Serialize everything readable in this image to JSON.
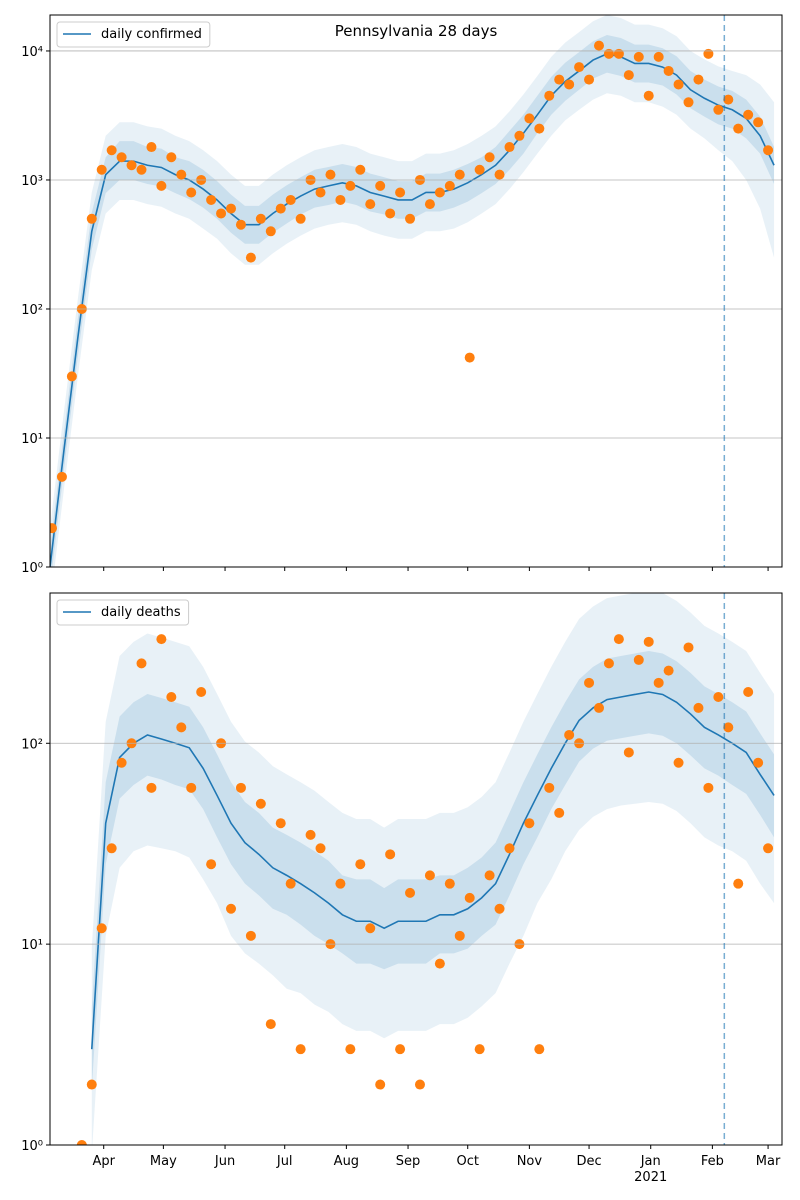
{
  "chart_data": [
    {
      "type": "line",
      "title": "Pennsylvania 28 days",
      "log_y": true,
      "grid": "y",
      "legend": "upper left",
      "show_xtick_labels": false,
      "xlim": [
        64,
        432
      ],
      "xticks": [
        91,
        121,
        152,
        182,
        213,
        244,
        274,
        305,
        335,
        366,
        397,
        425
      ],
      "ylim": [
        1,
        19000
      ],
      "yticks": [
        {
          "value": 1,
          "label": "10⁰"
        },
        {
          "value": 10,
          "label": "10¹"
        },
        {
          "value": 100,
          "label": "10²"
        },
        {
          "value": 1000,
          "label": "10³"
        },
        {
          "value": 10000,
          "label": "10⁴"
        }
      ],
      "x": [
        64,
        71,
        78,
        85,
        92,
        99,
        106,
        113,
        120,
        127,
        134,
        141,
        148,
        155,
        162,
        169,
        176,
        183,
        190,
        197,
        204,
        211,
        218,
        225,
        232,
        239,
        246,
        253,
        260,
        267,
        274,
        281,
        288,
        295,
        302,
        309,
        316,
        323,
        330,
        337,
        344,
        351,
        358,
        365,
        372,
        379,
        386,
        393,
        400,
        407,
        414,
        421,
        428
      ],
      "series": [
        {
          "name": "daily confirmed",
          "color": "#1f77b4",
          "values": [
            1,
            8,
            60,
            400,
            1100,
            1400,
            1400,
            1300,
            1250,
            1100,
            1000,
            850,
            700,
            550,
            450,
            450,
            550,
            650,
            750,
            850,
            900,
            950,
            900,
            800,
            750,
            700,
            700,
            800,
            800,
            850,
            950,
            1100,
            1300,
            1700,
            2300,
            3200,
            4500,
            5800,
            7000,
            8500,
            9500,
            9000,
            8000,
            8000,
            7500,
            6500,
            5000,
            4300,
            3800,
            3500,
            3000,
            2200,
            1300
          ]
        }
      ],
      "bands": [
        {
          "color": "#1f77b4",
          "opacity": 0.1,
          "low": [
            0.5,
            4,
            30,
            200,
            550,
            700,
            700,
            650,
            620,
            550,
            500,
            420,
            350,
            270,
            220,
            220,
            270,
            320,
            370,
            420,
            450,
            470,
            450,
            400,
            370,
            350,
            350,
            400,
            400,
            420,
            470,
            550,
            650,
            850,
            1150,
            1600,
            2200,
            2900,
            3500,
            4200,
            4700,
            4500,
            4000,
            4000,
            3700,
            3200,
            2500,
            2100,
            1700,
            1400,
            1000,
            600,
            250
          ],
          "high": [
            2,
            16,
            120,
            800,
            2200,
            2800,
            2800,
            2600,
            2500,
            2200,
            2000,
            1700,
            1400,
            1100,
            900,
            900,
            1100,
            1300,
            1500,
            1700,
            1800,
            1900,
            1800,
            1600,
            1500,
            1400,
            1400,
            1600,
            1600,
            1700,
            1900,
            2200,
            2600,
            3400,
            4600,
            6400,
            9000,
            11600,
            14000,
            17000,
            19000,
            18000,
            16000,
            16000,
            15000,
            13000,
            10000,
            8600,
            7600,
            7000,
            6500,
            5500,
            4000
          ]
        },
        {
          "color": "#1f77b4",
          "opacity": 0.15,
          "low": [
            0.7,
            5.7,
            43,
            290,
            790,
            1000,
            1000,
            930,
            890,
            790,
            710,
            610,
            500,
            390,
            320,
            320,
            390,
            460,
            540,
            610,
            640,
            680,
            640,
            570,
            540,
            500,
            500,
            570,
            570,
            610,
            680,
            790,
            930,
            1200,
            1600,
            2300,
            3200,
            4100,
            5000,
            6100,
            6800,
            6400,
            5700,
            5700,
            5400,
            4600,
            3600,
            3100,
            2700,
            2500,
            2100,
            1600,
            930
          ],
          "high": [
            1.4,
            11,
            84,
            560,
            1500,
            2000,
            2000,
            1800,
            1750,
            1500,
            1400,
            1200,
            980,
            770,
            630,
            630,
            770,
            910,
            1050,
            1200,
            1260,
            1330,
            1260,
            1120,
            1050,
            980,
            980,
            1120,
            1120,
            1200,
            1330,
            1500,
            1800,
            2400,
            3200,
            4500,
            6300,
            8100,
            9800,
            11900,
            13300,
            12600,
            11200,
            11200,
            10500,
            9100,
            7000,
            6000,
            5300,
            4900,
            4200,
            3100,
            1800
          ]
        }
      ],
      "scatter": {
        "color": "#ff7f0e",
        "x": [
          65,
          70,
          75,
          80,
          85,
          90,
          95,
          100,
          105,
          110,
          115,
          120,
          125,
          130,
          135,
          140,
          145,
          150,
          155,
          160,
          165,
          170,
          175,
          180,
          185,
          190,
          195,
          200,
          205,
          210,
          215,
          220,
          225,
          230,
          235,
          240,
          245,
          250,
          255,
          260,
          265,
          270,
          275,
          280,
          285,
          290,
          295,
          300,
          305,
          310,
          315,
          320,
          325,
          330,
          335,
          340,
          345,
          350,
          355,
          360,
          365,
          370,
          375,
          380,
          385,
          390,
          395,
          400,
          405,
          410,
          415,
          420,
          425
        ],
        "values": [
          2,
          5,
          30,
          100,
          500,
          1200,
          1700,
          1500,
          1300,
          1200,
          1800,
          900,
          1500,
          1100,
          800,
          1000,
          700,
          550,
          600,
          450,
          250,
          500,
          400,
          600,
          700,
          500,
          1000,
          800,
          1100,
          700,
          900,
          1200,
          650,
          900,
          550,
          800,
          500,
          1000,
          650,
          800,
          900,
          1100,
          42,
          1200,
          1500,
          1100,
          1800,
          2200,
          3000,
          2500,
          4500,
          6000,
          5500,
          7500,
          6000,
          11000,
          9500,
          9500,
          6500,
          9000,
          4500,
          9000,
          7000,
          5500,
          4000,
          6000,
          9500,
          3500,
          4200,
          2500,
          3200,
          2800,
          1700
        ]
      },
      "vline": {
        "x": 403,
        "color": "#1f77b4"
      }
    },
    {
      "type": "line",
      "log_y": true,
      "grid": "y",
      "legend": "upper left",
      "show_xtick_labels": true,
      "xlim": [
        64,
        432
      ],
      "xticks": [
        {
          "value": 91,
          "label": "Apr"
        },
        {
          "value": 121,
          "label": "May"
        },
        {
          "value": 152,
          "label": "Jun"
        },
        {
          "value": 182,
          "label": "Jul"
        },
        {
          "value": 213,
          "label": "Aug"
        },
        {
          "value": 244,
          "label": "Sep"
        },
        {
          "value": 274,
          "label": "Oct"
        },
        {
          "value": 305,
          "label": "Nov"
        },
        {
          "value": 335,
          "label": "Dec"
        },
        {
          "value": 366,
          "label": "Jan"
        },
        {
          "value": 397,
          "label": "Feb"
        },
        {
          "value": 425,
          "label": "Mar"
        }
      ],
      "year_label": {
        "value": 366,
        "label": "2021"
      },
      "ylim": [
        1,
        560
      ],
      "yticks": [
        {
          "value": 1,
          "label": "10⁰"
        },
        {
          "value": 10,
          "label": "10¹"
        },
        {
          "value": 100,
          "label": "10²"
        }
      ],
      "x": [
        64,
        71,
        78,
        85,
        92,
        99,
        106,
        113,
        120,
        127,
        134,
        141,
        148,
        155,
        162,
        169,
        176,
        183,
        190,
        197,
        204,
        211,
        218,
        225,
        232,
        239,
        246,
        253,
        260,
        267,
        274,
        281,
        288,
        295,
        302,
        309,
        316,
        323,
        330,
        337,
        344,
        351,
        358,
        365,
        372,
        379,
        386,
        393,
        400,
        407,
        414,
        421,
        428
      ],
      "series": [
        {
          "name": "daily deaths",
          "color": "#1f77b4",
          "values": [
            null,
            null,
            null,
            3,
            40,
            85,
            100,
            110,
            105,
            100,
            95,
            75,
            55,
            40,
            32,
            28,
            24,
            22,
            20,
            18,
            16,
            14,
            13,
            13,
            12,
            13,
            13,
            13,
            14,
            14,
            15,
            17,
            20,
            28,
            40,
            55,
            75,
            100,
            130,
            150,
            165,
            170,
            175,
            180,
            175,
            160,
            140,
            120,
            110,
            100,
            90,
            70,
            55
          ]
        }
      ],
      "bands": [
        {
          "color": "#1f77b4",
          "opacity": 0.1,
          "low": [
            null,
            null,
            null,
            0.9,
            11,
            24,
            29,
            31,
            30,
            29,
            27,
            21,
            16,
            11,
            9,
            8,
            7,
            6,
            5.7,
            5,
            4.6,
            4,
            3.7,
            3.7,
            3.4,
            3.7,
            3.7,
            3.7,
            4,
            4,
            4.3,
            4.9,
            5.7,
            8,
            11,
            16,
            21,
            29,
            37,
            43,
            47,
            49,
            50,
            51,
            50,
            46,
            40,
            34,
            31,
            29,
            26,
            20,
            16
          ],
          "high": [
            null,
            null,
            null,
            9.6,
            128,
            272,
            320,
            352,
            336,
            320,
            304,
            240,
            176,
            128,
            102,
            90,
            77,
            70,
            64,
            58,
            51,
            45,
            42,
            42,
            38,
            42,
            42,
            42,
            45,
            45,
            48,
            54,
            64,
            90,
            128,
            176,
            240,
            320,
            416,
            480,
            528,
            544,
            560,
            576,
            560,
            512,
            448,
            384,
            352,
            320,
            288,
            224,
            176
          ]
        },
        {
          "color": "#1f77b4",
          "opacity": 0.15,
          "low": [
            null,
            null,
            null,
            1.9,
            25,
            53,
            62,
            69,
            66,
            62,
            59,
            47,
            34,
            25,
            20,
            17.5,
            15,
            14,
            12.5,
            11,
            10,
            9,
            8,
            8,
            7.5,
            8,
            8,
            8,
            9,
            9,
            9.5,
            11,
            12.5,
            17.5,
            25,
            34,
            47,
            62,
            81,
            94,
            103,
            106,
            109,
            112,
            109,
            100,
            87,
            75,
            69,
            62,
            56,
            44,
            34
          ],
          "high": [
            null,
            null,
            null,
            4.8,
            64,
            136,
            160,
            176,
            168,
            160,
            152,
            120,
            88,
            64,
            51,
            45,
            38,
            35,
            32,
            29,
            26,
            22,
            21,
            21,
            19,
            21,
            21,
            21,
            22,
            22,
            24,
            27,
            32,
            45,
            64,
            88,
            120,
            160,
            208,
            240,
            264,
            272,
            280,
            288,
            280,
            256,
            224,
            192,
            176,
            160,
            144,
            112,
            88
          ]
        }
      ],
      "scatter": {
        "color": "#ff7f0e",
        "x": [
          65,
          70,
          75,
          80,
          85,
          90,
          95,
          100,
          105,
          110,
          115,
          120,
          125,
          130,
          135,
          140,
          145,
          150,
          155,
          160,
          165,
          170,
          175,
          180,
          185,
          190,
          195,
          200,
          205,
          210,
          215,
          220,
          225,
          230,
          235,
          240,
          245,
          250,
          255,
          260,
          265,
          270,
          275,
          280,
          285,
          290,
          295,
          300,
          305,
          310,
          315,
          320,
          325,
          330,
          335,
          340,
          345,
          350,
          355,
          360,
          365,
          370,
          375,
          380,
          385,
          390,
          395,
          400,
          405,
          410,
          415,
          420,
          425
        ],
        "values": [
          null,
          null,
          null,
          1,
          2,
          12,
          30,
          80,
          100,
          250,
          60,
          330,
          170,
          120,
          60,
          180,
          25,
          100,
          15,
          60,
          11,
          50,
          4,
          40,
          20,
          3,
          35,
          30,
          10,
          20,
          3,
          25,
          12,
          2,
          28,
          3,
          18,
          2,
          22,
          8,
          20,
          11,
          17,
          3,
          22,
          15,
          30,
          10,
          40,
          3,
          60,
          45,
          110,
          100,
          200,
          150,
          250,
          330,
          90,
          260,
          320,
          200,
          230,
          80,
          300,
          150,
          60,
          170,
          120,
          20,
          180,
          80,
          30
        ]
      },
      "vline": {
        "x": 403,
        "color": "#1f77b4"
      }
    }
  ]
}
